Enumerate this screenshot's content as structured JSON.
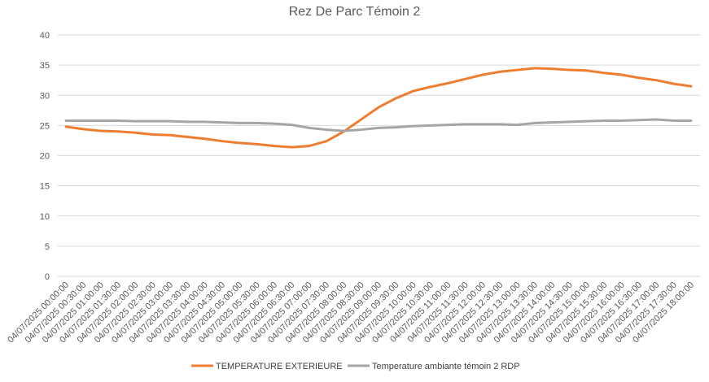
{
  "chart_data": {
    "type": "line",
    "title": "Rez De Parc Témoin 2",
    "xlabel": "",
    "ylabel": "",
    "ylim": [
      0,
      40
    ],
    "yticks": [
      0,
      5,
      10,
      15,
      20,
      25,
      30,
      35,
      40
    ],
    "grid": true,
    "legend_position": "bottom",
    "categories": [
      "04/07/2025 00:00:00",
      "04/07/2025 00:30:00",
      "04/07/2025 01:00:00",
      "04/07/2025 01:30:00",
      "04/07/2025 02:00:00",
      "04/07/2025 02:30:00",
      "04/07/2025 03:00:00",
      "04/07/2025 03:30:00",
      "04/07/2025 04:00:00",
      "04/07/2025 04:30:00",
      "04/07/2025 05:00:00",
      "04/07/2025 05:30:00",
      "04/07/2025 06:00:00",
      "04/07/2025 06:30:00",
      "04/07/2025 07:00:00",
      "04/07/2025 07:30:00",
      "04/07/2025 08:00:00",
      "04/07/2025 08:30:00",
      "04/07/2025 09:00:00",
      "04/07/2025 09:30:00",
      "04/07/2025 10:00:00",
      "04/07/2025 10:30:00",
      "04/07/2025 11:00:00",
      "04/07/2025 11:30:00",
      "04/07/2025 12:00:00",
      "04/07/2025 12:30:00",
      "04/07/2025 13:00:00",
      "04/07/2025 13:30:00",
      "04/07/2025 14:00:00",
      "04/07/2025 14:30:00",
      "04/07/2025 15:00:00",
      "04/07/2025 15:30:00",
      "04/07/2025 16:00:00",
      "04/07/2025 16:30:00",
      "04/07/2025 17:00:00",
      "04/07/2025 17:30:00",
      "04/07/2025 18:00:00"
    ],
    "series": [
      {
        "name": "TEMPERATURE EXTERIEURE",
        "color": "#ED7D31",
        "values": [
          24.8,
          24.4,
          24.1,
          24.0,
          23.8,
          23.5,
          23.4,
          23.1,
          22.8,
          22.4,
          22.1,
          21.9,
          21.6,
          21.4,
          21.6,
          22.4,
          24.0,
          26.0,
          28.0,
          29.5,
          30.7,
          31.4,
          32.0,
          32.7,
          33.4,
          33.9,
          34.2,
          34.5,
          34.4,
          34.2,
          34.1,
          33.7,
          33.4,
          32.9,
          32.5,
          31.9,
          31.5
        ]
      },
      {
        "name": "Temperature ambiante témoin 2 RDP",
        "color": "#A5A5A5",
        "values": [
          25.8,
          25.8,
          25.8,
          25.8,
          25.7,
          25.7,
          25.7,
          25.6,
          25.6,
          25.5,
          25.4,
          25.4,
          25.3,
          25.1,
          24.6,
          24.3,
          24.1,
          24.3,
          24.6,
          24.7,
          24.9,
          25.0,
          25.1,
          25.2,
          25.2,
          25.2,
          25.1,
          25.4,
          25.5,
          25.6,
          25.7,
          25.8,
          25.8,
          25.9,
          26.0,
          25.8,
          25.8
        ]
      }
    ]
  }
}
